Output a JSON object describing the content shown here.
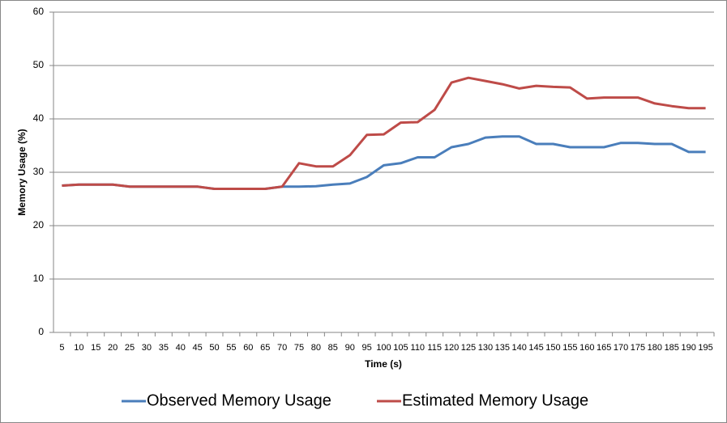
{
  "chart_data": {
    "type": "line",
    "x_label": "Time (s)",
    "y_label": "Memory Usage (%)",
    "categories": [
      5,
      10,
      15,
      20,
      25,
      30,
      35,
      40,
      45,
      50,
      55,
      60,
      65,
      70,
      75,
      80,
      85,
      90,
      95,
      100,
      105,
      110,
      115,
      120,
      125,
      130,
      135,
      140,
      145,
      150,
      155,
      160,
      165,
      170,
      175,
      180,
      185,
      190,
      195
    ],
    "series": [
      {
        "name": "Observed Memory Usage",
        "color": "#4a7ebb",
        "values": [
          27.5,
          27.7,
          27.7,
          27.7,
          27.3,
          27.3,
          27.3,
          27.3,
          27.3,
          26.9,
          26.9,
          26.9,
          26.9,
          27.3,
          27.3,
          27.4,
          27.7,
          27.9,
          29.1,
          31.3,
          31.7,
          32.8,
          32.8,
          34.7,
          35.3,
          36.5,
          36.7,
          36.7,
          35.3,
          35.3,
          34.7,
          34.7,
          34.7,
          35.5,
          35.5,
          35.3,
          35.3,
          33.8,
          33.8
        ]
      },
      {
        "name": "Estimated Memory Usage",
        "color": "#be4b48",
        "values": [
          27.5,
          27.7,
          27.7,
          27.7,
          27.3,
          27.3,
          27.3,
          27.3,
          27.3,
          26.9,
          26.9,
          26.9,
          26.9,
          27.3,
          31.7,
          31.1,
          31.1,
          33.2,
          37.0,
          37.1,
          39.3,
          39.4,
          41.7,
          46.8,
          47.7,
          47.1,
          46.5,
          45.7,
          46.2,
          46.0,
          45.9,
          43.8,
          44.0,
          44.0,
          44.0,
          42.9,
          42.4,
          42.0,
          42.0
        ]
      }
    ],
    "ylim": [
      0,
      60
    ],
    "yticks": [
      0,
      10,
      20,
      30,
      40,
      50,
      60
    ],
    "grid": true,
    "legend": "bottom"
  }
}
